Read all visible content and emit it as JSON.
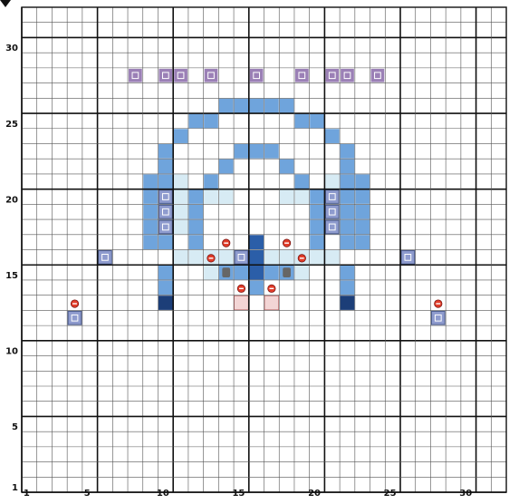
{
  "board": {
    "columns": 32,
    "rows": 32,
    "major_every": 5,
    "colors": {
      "background": "#ffffff",
      "grid_minor": "#555555",
      "grid_major": "#111111",
      "deck": "#6fa4dc",
      "deck_light": "#d7ebf4",
      "dark": "#1c3e78",
      "dark_mid": "#2b5ea8",
      "floor": "#dde8f4",
      "purple": "#9b80b6",
      "control": "#8e9bce",
      "marker_red": "#e23d2a",
      "npc_gray": "#666666",
      "door_pink": "#f3d5d5"
    },
    "x_ticks": [
      "1",
      "5",
      "10",
      "15",
      "20",
      "25",
      "30"
    ],
    "y_ticks": [
      "1",
      "5",
      "10",
      "15",
      "20",
      "25",
      "30"
    ]
  }
}
